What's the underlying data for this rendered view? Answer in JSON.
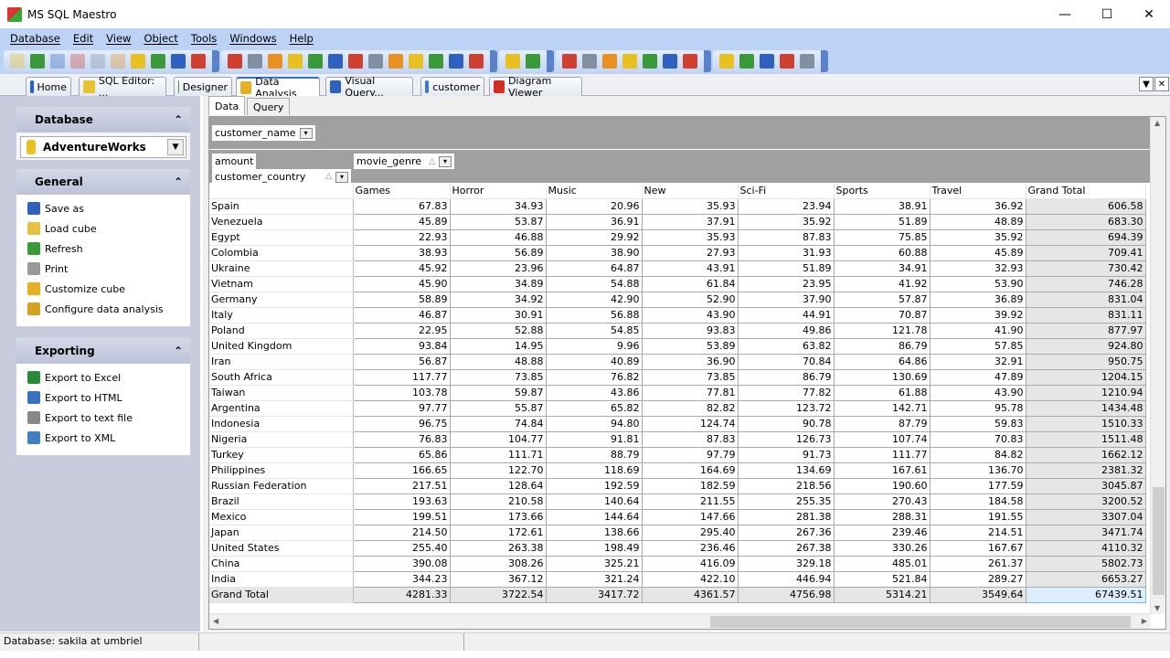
{
  "window": {
    "title": "MS SQL Maestro",
    "minimize": "—",
    "maximize": "☐",
    "close": "✕"
  },
  "menu": [
    "Database",
    "Edit",
    "View",
    "Object",
    "Tools",
    "Windows",
    "Help"
  ],
  "toolbar": {
    "groups": [
      [
        "refresh-icon",
        "create-database-icon",
        "database-properties-icon",
        "drop-database-icon",
        "disconnect-icon",
        "disconnect-all-icon",
        "connect-icon",
        "database-error-icon",
        "table-icon",
        "view-icon"
      ],
      [
        "sql-editor-icon",
        "visual-query-builder-icon",
        "execute-script-icon",
        "run-icon",
        "export-database-icon",
        "print-icon",
        "image-viewer-icon",
        "diagram-icon",
        "cube-icon",
        "report-icon",
        "calculator-icon",
        "schema-icon",
        "plugin-icon"
      ],
      [
        "filter-icon",
        "pivot-icon"
      ],
      [
        "new-window-icon",
        "cascade-icon",
        "tile-horizontal-icon",
        "tile-vertical-icon",
        "close-all-windows-icon",
        "back-icon",
        "forward-icon"
      ],
      [
        "home-page-icon",
        "web-icon",
        "support-icon",
        "mail-icon",
        "register-icon"
      ]
    ]
  },
  "tabs": [
    {
      "label": "Home",
      "icon": "home-icon",
      "color": "#1d5fd6"
    },
    {
      "label": "SQL Editor: ...",
      "icon": "sql-editor-icon",
      "color": "#e8c230"
    },
    {
      "label": "Designer",
      "icon": "designer-icon",
      "color": "#4a9a3a"
    },
    {
      "label": "Data Analysis",
      "icon": "cube-icon",
      "color": "#e8b020",
      "active": true
    },
    {
      "label": "Visual Query...",
      "icon": "visual-query-icon",
      "color": "#3060c0"
    },
    {
      "label": "customer",
      "icon": "table-icon",
      "color": "#3a7ad0"
    },
    {
      "label": "Diagram Viewer",
      "icon": "diagram-icon",
      "color": "#d03020"
    }
  ],
  "tab_controls": {
    "menu": "▼",
    "close": "✕"
  },
  "sidebar": {
    "database": {
      "title": "Database",
      "collapse": "⌃",
      "selected": "AdventureWorks"
    },
    "general": {
      "title": "General",
      "collapse": "⌃",
      "items": [
        {
          "label": "Save as",
          "icon": "save-icon",
          "color": "#3060c0"
        },
        {
          "label": "Load cube",
          "icon": "folder-open-icon",
          "color": "#e8c040"
        },
        {
          "label": "Refresh",
          "icon": "refresh-icon",
          "color": "#3a9a3a"
        },
        {
          "label": "Print",
          "icon": "print-icon",
          "color": "#999999"
        },
        {
          "label": "Customize cube",
          "icon": "cube-icon",
          "color": "#e8b020"
        },
        {
          "label": "Configure data analysis",
          "icon": "configure-icon",
          "color": "#d8a020"
        }
      ]
    },
    "exporting": {
      "title": "Exporting",
      "collapse": "⌃",
      "items": [
        {
          "label": "Export to Excel",
          "icon": "excel-icon",
          "color": "#2a8a3a"
        },
        {
          "label": "Export to HTML",
          "icon": "html-icon",
          "color": "#3a70c0"
        },
        {
          "label": "Export to text file",
          "icon": "text-file-icon",
          "color": "#888888"
        },
        {
          "label": "Export to XML",
          "icon": "xml-icon",
          "color": "#4080c0"
        }
      ]
    }
  },
  "main": {
    "subtabs": [
      "Data",
      "Query"
    ],
    "filter_field": "customer_name",
    "data_field": "amount",
    "column_field": "movie_genre",
    "row_field": "customer_country",
    "columns": [
      "Games",
      "Horror",
      "Music",
      "New",
      "Sci-Fi",
      "Sports",
      "Travel",
      "Grand Total"
    ],
    "rows": [
      {
        "label": "Spain",
        "values": [
          "67.83",
          "34.93",
          "20.96",
          "35.93",
          "23.94",
          "38.91",
          "36.92",
          "606.58"
        ]
      },
      {
        "label": "Venezuela",
        "values": [
          "45.89",
          "53.87",
          "36.91",
          "37.91",
          "35.92",
          "51.89",
          "48.89",
          "683.30"
        ]
      },
      {
        "label": "Egypt",
        "values": [
          "22.93",
          "46.88",
          "29.92",
          "35.93",
          "87.83",
          "75.85",
          "35.92",
          "694.39"
        ]
      },
      {
        "label": "Colombia",
        "values": [
          "38.93",
          "56.89",
          "38.90",
          "27.93",
          "31.93",
          "60.88",
          "45.89",
          "709.41"
        ]
      },
      {
        "label": "Ukraine",
        "values": [
          "45.92",
          "23.96",
          "64.87",
          "43.91",
          "51.89",
          "34.91",
          "32.93",
          "730.42"
        ]
      },
      {
        "label": "Vietnam",
        "values": [
          "45.90",
          "34.89",
          "54.88",
          "61.84",
          "23.95",
          "41.92",
          "53.90",
          "746.28"
        ]
      },
      {
        "label": "Germany",
        "values": [
          "58.89",
          "34.92",
          "42.90",
          "52.90",
          "37.90",
          "57.87",
          "36.89",
          "831.04"
        ]
      },
      {
        "label": "Italy",
        "values": [
          "46.87",
          "30.91",
          "56.88",
          "43.90",
          "44.91",
          "70.87",
          "39.92",
          "831.11"
        ]
      },
      {
        "label": "Poland",
        "values": [
          "22.95",
          "52.88",
          "54.85",
          "93.83",
          "49.86",
          "121.78",
          "41.90",
          "877.97"
        ]
      },
      {
        "label": "United Kingdom",
        "values": [
          "93.84",
          "14.95",
          "9.96",
          "53.89",
          "63.82",
          "86.79",
          "57.85",
          "924.80"
        ]
      },
      {
        "label": "Iran",
        "values": [
          "56.87",
          "48.88",
          "40.89",
          "36.90",
          "70.84",
          "64.86",
          "32.91",
          "950.75"
        ]
      },
      {
        "label": "South Africa",
        "values": [
          "117.77",
          "73.85",
          "76.82",
          "73.85",
          "86.79",
          "130.69",
          "47.89",
          "1204.15"
        ]
      },
      {
        "label": "Taiwan",
        "values": [
          "103.78",
          "59.87",
          "43.86",
          "77.81",
          "77.82",
          "61.88",
          "43.90",
          "1210.94"
        ]
      },
      {
        "label": "Argentina",
        "values": [
          "97.77",
          "55.87",
          "65.82",
          "82.82",
          "123.72",
          "142.71",
          "95.78",
          "1434.48"
        ]
      },
      {
        "label": "Indonesia",
        "values": [
          "96.75",
          "74.84",
          "94.80",
          "124.74",
          "90.78",
          "87.79",
          "59.83",
          "1510.33"
        ]
      },
      {
        "label": "Nigeria",
        "values": [
          "76.83",
          "104.77",
          "91.81",
          "87.83",
          "126.73",
          "107.74",
          "70.83",
          "1511.48"
        ]
      },
      {
        "label": "Turkey",
        "values": [
          "65.86",
          "111.71",
          "88.79",
          "97.79",
          "91.73",
          "111.77",
          "84.82",
          "1662.12"
        ]
      },
      {
        "label": "Philippines",
        "values": [
          "166.65",
          "122.70",
          "118.69",
          "164.69",
          "134.69",
          "167.61",
          "136.70",
          "2381.32"
        ]
      },
      {
        "label": "Russian Federation",
        "values": [
          "217.51",
          "128.64",
          "192.59",
          "182.59",
          "218.56",
          "190.60",
          "177.59",
          "3045.87"
        ]
      },
      {
        "label": "Brazil",
        "values": [
          "193.63",
          "210.58",
          "140.64",
          "211.55",
          "255.35",
          "270.43",
          "184.58",
          "3200.52"
        ]
      },
      {
        "label": "Mexico",
        "values": [
          "199.51",
          "173.66",
          "144.64",
          "147.66",
          "281.38",
          "288.31",
          "191.55",
          "3307.04"
        ]
      },
      {
        "label": "Japan",
        "values": [
          "214.50",
          "172.61",
          "138.66",
          "295.40",
          "267.36",
          "239.46",
          "214.51",
          "3471.74"
        ]
      },
      {
        "label": "United States",
        "values": [
          "255.40",
          "263.38",
          "198.49",
          "236.46",
          "267.38",
          "330.26",
          "167.67",
          "4110.32"
        ]
      },
      {
        "label": "China",
        "values": [
          "390.08",
          "308.26",
          "325.21",
          "416.09",
          "329.18",
          "485.01",
          "261.37",
          "5802.73"
        ]
      },
      {
        "label": "India",
        "values": [
          "344.23",
          "367.12",
          "321.24",
          "422.10",
          "446.94",
          "521.84",
          "289.27",
          "6653.27"
        ]
      }
    ],
    "grand_total": {
      "label": "Grand Total",
      "values": [
        "4281.33",
        "3722.54",
        "3417.72",
        "4361.57",
        "4756.98",
        "5314.21",
        "3549.64",
        "67439.51"
      ]
    }
  },
  "status": {
    "database": "Database: sakila at umbriel"
  }
}
